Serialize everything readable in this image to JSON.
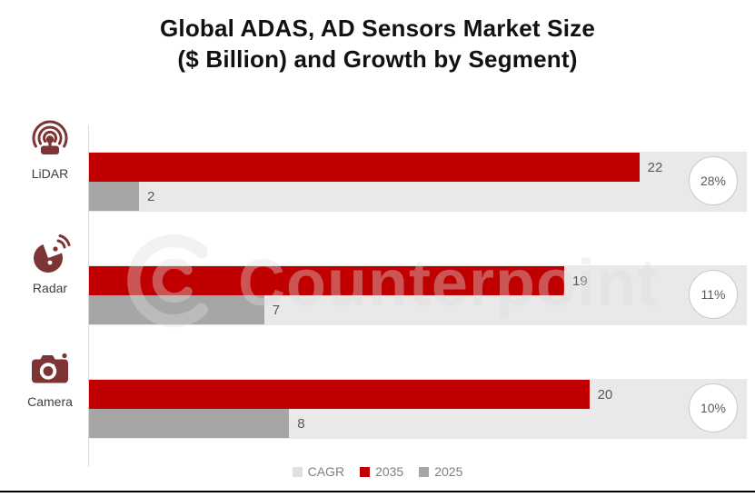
{
  "title": {
    "line1": "Global ADAS, AD Sensors Market Size",
    "line2": "($ Billion) and Growth by Segment)"
  },
  "watermark": {
    "brand": "Counterpoint"
  },
  "rows": [
    {
      "category": "LiDAR",
      "v2035": 22,
      "v2025": 2,
      "cagr": "28%"
    },
    {
      "category": "Radar",
      "v2035": 19,
      "v2025": 7,
      "cagr": "11%"
    },
    {
      "category": "Camera",
      "v2035": 20,
      "v2025": 8,
      "cagr": "10%"
    }
  ],
  "legend": {
    "items": [
      {
        "label": "CAGR"
      },
      {
        "label": "2035"
      },
      {
        "label": "2025"
      }
    ]
  },
  "colors": {
    "bar_2035": "#c00000",
    "bar_2025": "#a6a6a6",
    "cagr_track": "#e9e9e9",
    "icon": "#7d3434",
    "axis": "#d9d9d9",
    "value_text": "#595959",
    "legend_text": "#7f7f7f"
  },
  "chart_data": {
    "type": "bar",
    "orientation": "horizontal",
    "title": "Global ADAS, AD Sensors Market Size ($ Billion) and Growth by Segment)",
    "categories": [
      "LiDAR",
      "Radar",
      "Camera"
    ],
    "series": [
      {
        "name": "2035",
        "values": [
          22,
          19,
          20
        ],
        "color": "#c00000"
      },
      {
        "name": "2025",
        "values": [
          2,
          7,
          8
        ],
        "color": "#a6a6a6"
      },
      {
        "name": "CAGR",
        "values": [
          "28%",
          "11%",
          "10%"
        ],
        "color": "#e9e9e9",
        "style": "full-width track with circular badge at right end"
      }
    ],
    "xlim": [
      0,
      26.3
    ],
    "value_labels": true,
    "gridlines": false,
    "legend_position": "bottom"
  }
}
